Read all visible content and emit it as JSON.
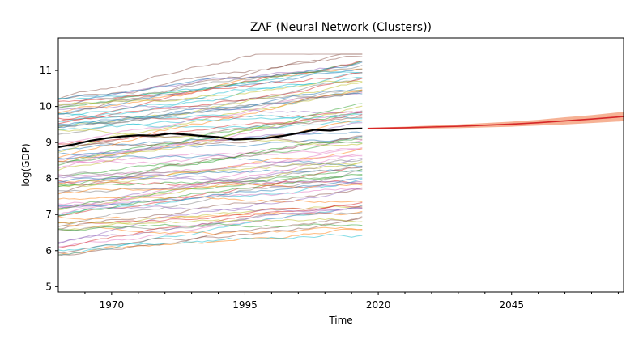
{
  "chart_data": {
    "type": "line",
    "title": "ZAF (Neural Network (Clusters))",
    "xlabel": "Time",
    "ylabel": "log(GDP)",
    "xlim": [
      1960,
      2066
    ],
    "ylim": [
      4.85,
      11.9
    ],
    "x_ticks": [
      1970,
      1995,
      2020,
      2045
    ],
    "x_tick_labels": [
      "1970",
      "1995",
      "2020",
      "2045"
    ],
    "y_ticks": [
      5,
      6,
      7,
      8,
      9,
      10,
      11
    ],
    "y_tick_labels": [
      "5",
      "6",
      "7",
      "8",
      "9",
      "10",
      "11"
    ],
    "grid": false,
    "legend": "none",
    "background_series": {
      "count": 90,
      "x_start": 1960,
      "x_end": 2017,
      "start_range": [
        5.8,
        10.3
      ],
      "alpha": 0.5
    },
    "series": [
      {
        "color": "#000000",
        "x": [
          1960,
          1963,
          1966,
          1969,
          1972,
          1975,
          1978,
          1981,
          1984,
          1987,
          1990,
          1993,
          1996,
          1999,
          2002,
          2005,
          2008,
          2011,
          2014,
          2017
        ],
        "y": [
          8.87,
          8.95,
          9.05,
          9.12,
          9.17,
          9.2,
          9.19,
          9.25,
          9.22,
          9.18,
          9.15,
          9.08,
          9.1,
          9.12,
          9.18,
          9.26,
          9.35,
          9.33,
          9.38,
          9.39
        ]
      },
      {
        "color": "#d62728",
        "x": [
          2018,
          2025,
          2030,
          2035,
          2040,
          2045,
          2050,
          2055,
          2060,
          2066
        ],
        "y": [
          9.39,
          9.41,
          9.43,
          9.45,
          9.48,
          9.51,
          9.55,
          9.6,
          9.65,
          9.72
        ],
        "band_lower": [
          9.37,
          9.38,
          9.39,
          9.4,
          9.42,
          9.44,
          9.47,
          9.5,
          9.54,
          9.59
        ],
        "band_upper": [
          9.41,
          9.44,
          9.47,
          9.5,
          9.54,
          9.58,
          9.63,
          9.7,
          9.76,
          9.85
        ]
      }
    ]
  }
}
